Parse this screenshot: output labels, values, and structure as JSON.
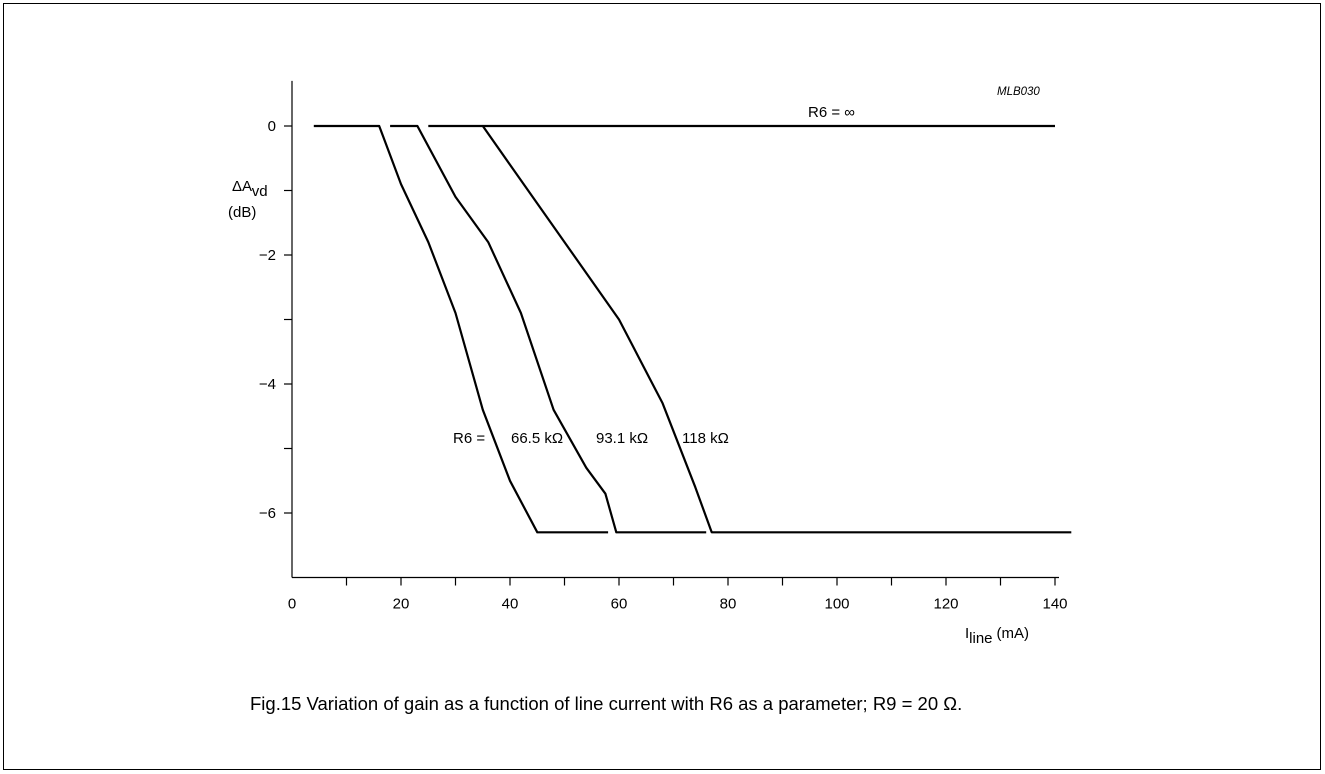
{
  "caption": "Fig.15  Variation of gain as a function of line current with R6 as a parameter; R9 = 20 Ω.",
  "chart_data": {
    "type": "line",
    "code": "MLB030",
    "ylabel": {
      "main": "ΔA",
      "sub": "vd",
      "unit": "(dB)"
    },
    "xlabel": {
      "main": "I",
      "sub": "line",
      "unit": "(mA)"
    },
    "xlim": [
      0,
      140
    ],
    "ylim": [
      -7,
      0.7
    ],
    "x_ticks": [
      0,
      20,
      40,
      60,
      80,
      100,
      120,
      140
    ],
    "x_minor_ticks": [
      10,
      30,
      50,
      70,
      90,
      110,
      130
    ],
    "y_ticks": [
      0,
      -2,
      -4,
      -6
    ],
    "y_tick_labels": [
      "0",
      "−2",
      "−4",
      "−6"
    ],
    "y_minor_ticks": [
      -1,
      -3,
      -5
    ],
    "series": [
      {
        "name": "R6 = ∞",
        "x": [
          35,
          140
        ],
        "y": [
          0,
          0
        ]
      },
      {
        "name": "66.5 kΩ",
        "x": [
          4,
          16,
          20,
          25,
          30,
          35,
          40,
          45,
          58
        ],
        "y": [
          0,
          0,
          -0.9,
          -1.8,
          -2.9,
          -4.4,
          -5.5,
          -6.3,
          -6.3
        ]
      },
      {
        "name": "93.1 kΩ",
        "x": [
          18,
          23,
          30,
          36,
          42,
          48,
          54,
          57.5,
          59.5,
          76
        ],
        "y": [
          0,
          0,
          -1.1,
          -1.8,
          -2.9,
          -4.4,
          -5.3,
          -5.7,
          -6.3,
          -6.3
        ]
      },
      {
        "name": "118 kΩ",
        "x": [
          25,
          35,
          40,
          50,
          60,
          68,
          74,
          77,
          143
        ],
        "y": [
          0,
          0,
          -0.6,
          -1.8,
          -3.0,
          -4.3,
          -5.6,
          -6.3,
          -6.3
        ]
      }
    ],
    "annotations": [
      {
        "text": "R6 = ∞"
      },
      {
        "text": "R6 ="
      },
      {
        "text": "66.5 kΩ"
      },
      {
        "text": "93.1 kΩ"
      },
      {
        "text": "118 kΩ"
      }
    ]
  }
}
